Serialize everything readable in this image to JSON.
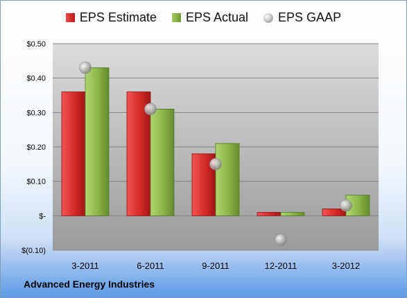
{
  "chart_data": {
    "type": "bar",
    "categories": [
      "3-2011",
      "6-2011",
      "9-2011",
      "12-2011",
      "3-2012"
    ],
    "series": [
      {
        "name": "EPS Estimate",
        "values": [
          0.36,
          0.36,
          0.18,
          0.01,
          0.02
        ],
        "color": "#d42626"
      },
      {
        "name": "EPS Actual",
        "values": [
          0.43,
          0.31,
          0.21,
          0.01,
          0.06
        ],
        "color": "#8ab548"
      },
      {
        "name": "EPS GAAP",
        "values": [
          0.43,
          0.31,
          0.15,
          -0.07,
          0.03
        ],
        "color": "#b0b0b0",
        "marker": "circle"
      }
    ],
    "ylim": [
      -0.1,
      0.5
    ],
    "yticks": [
      0.5,
      0.4,
      0.3,
      0.2,
      0.1,
      0,
      -0.1
    ],
    "ytick_labels": [
      "$0.50",
      "$0.40",
      "$0.30",
      "$0.20",
      "$0.10",
      "$-",
      "$(0.10)"
    ],
    "grid": true,
    "legend": "top",
    "xlabel": "",
    "ylabel": ""
  },
  "footer": {
    "company": "Advanced Energy Industries"
  }
}
